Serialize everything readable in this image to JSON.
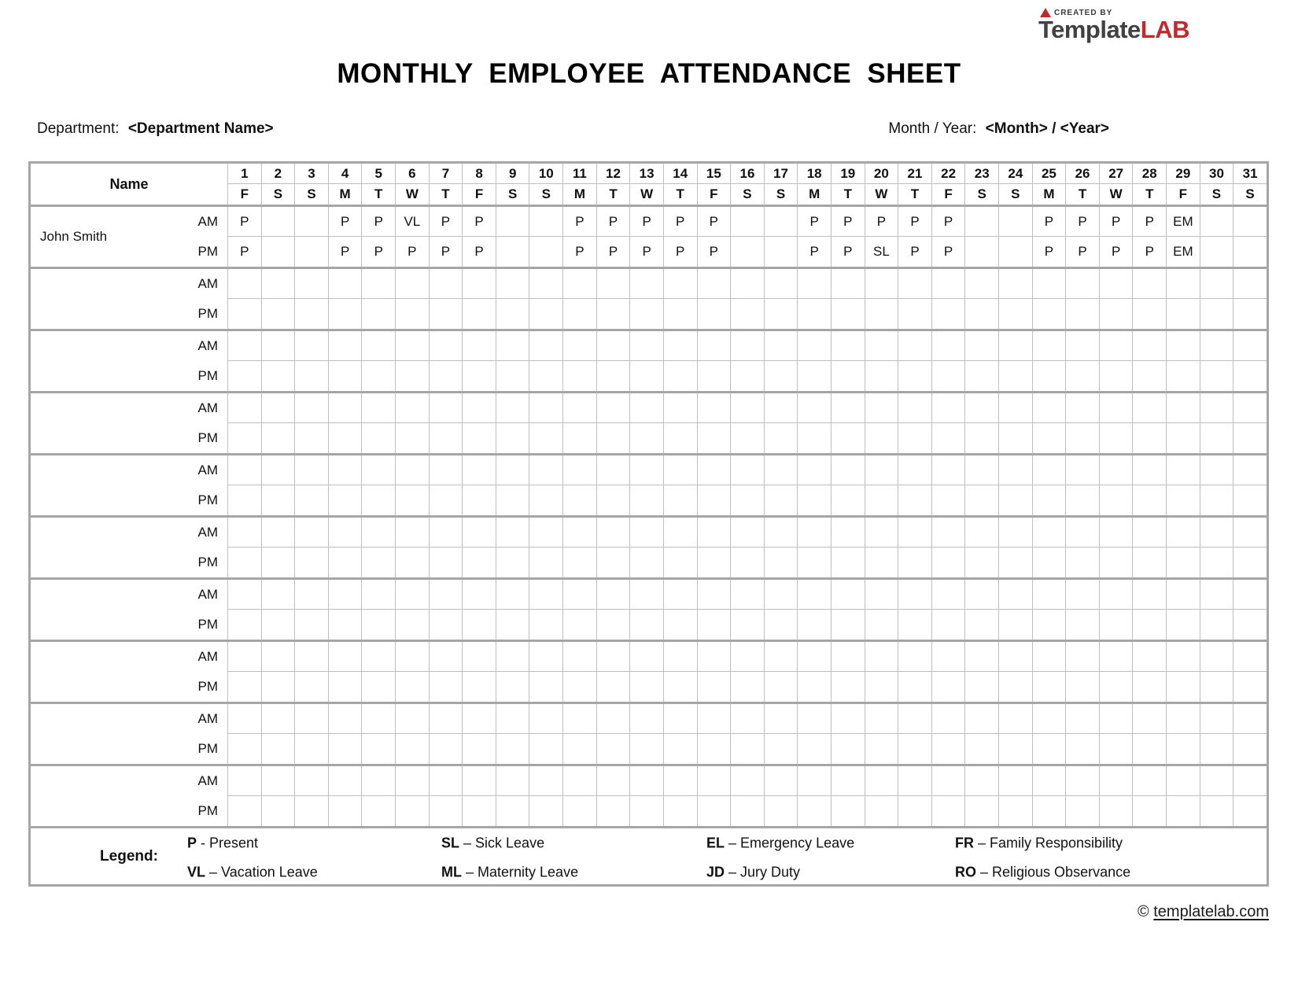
{
  "logo": {
    "created_by": "CREATED BY",
    "name_primary": "Template",
    "name_accent": "LAB",
    "accent_color": "#c2282e",
    "dark_color": "#414042"
  },
  "title": "MONTHLY EMPLOYEE ATTENDANCE SHEET",
  "meta": {
    "department_label": "Department:",
    "department_value": "<Department Name>",
    "month_year_label": "Month / Year:",
    "month_year_value": "<Month> / <Year>"
  },
  "table": {
    "name_header": "Name",
    "am_label": "AM",
    "pm_label": "PM",
    "day_numbers": [
      "1",
      "2",
      "3",
      "4",
      "5",
      "6",
      "7",
      "8",
      "9",
      "10",
      "11",
      "12",
      "13",
      "14",
      "15",
      "16",
      "17",
      "18",
      "19",
      "20",
      "21",
      "22",
      "23",
      "24",
      "25",
      "26",
      "27",
      "28",
      "29",
      "30",
      "31"
    ],
    "day_letters": [
      "F",
      "S",
      "S",
      "M",
      "T",
      "W",
      "T",
      "F",
      "S",
      "S",
      "M",
      "T",
      "W",
      "T",
      "F",
      "S",
      "S",
      "M",
      "T",
      "W",
      "T",
      "F",
      "S",
      "S",
      "M",
      "T",
      "W",
      "T",
      "F",
      "S",
      "S"
    ],
    "employees": [
      {
        "name": "John Smith",
        "am": [
          "P",
          "",
          "",
          "P",
          "P",
          "VL",
          "P",
          "P",
          "",
          "",
          "P",
          "P",
          "P",
          "P",
          "P",
          "",
          "",
          "P",
          "P",
          "P",
          "P",
          "P",
          "",
          "",
          "P",
          "P",
          "P",
          "P",
          "EM",
          "",
          ""
        ],
        "pm": [
          "P",
          "",
          "",
          "P",
          "P",
          "P",
          "P",
          "P",
          "",
          "",
          "P",
          "P",
          "P",
          "P",
          "P",
          "",
          "",
          "P",
          "P",
          "SL",
          "P",
          "P",
          "",
          "",
          "P",
          "P",
          "P",
          "P",
          "EM",
          "",
          ""
        ]
      },
      {
        "name": "",
        "am": [],
        "pm": []
      },
      {
        "name": "",
        "am": [],
        "pm": []
      },
      {
        "name": "",
        "am": [],
        "pm": []
      },
      {
        "name": "",
        "am": [],
        "pm": []
      },
      {
        "name": "",
        "am": [],
        "pm": []
      },
      {
        "name": "",
        "am": [],
        "pm": []
      },
      {
        "name": "",
        "am": [],
        "pm": []
      },
      {
        "name": "",
        "am": [],
        "pm": []
      },
      {
        "name": "",
        "am": [],
        "pm": []
      }
    ]
  },
  "legend": {
    "label": "Legend:",
    "rows": [
      [
        {
          "code": "P",
          "sep": "-",
          "desc": "Present"
        },
        {
          "code": "SL",
          "sep": "–",
          "desc": "Sick Leave"
        },
        {
          "code": "EL",
          "sep": "–",
          "desc": "Emergency Leave"
        },
        {
          "code": "FR",
          "sep": "–",
          "desc": "Family Responsibility"
        }
      ],
      [
        {
          "code": "VL",
          "sep": "–",
          "desc": "Vacation Leave"
        },
        {
          "code": "ML",
          "sep": "–",
          "desc": "Maternity Leave"
        },
        {
          "code": "JD",
          "sep": "–",
          "desc": "Jury Duty"
        },
        {
          "code": "RO",
          "sep": "–",
          "desc": "Religious Observance"
        }
      ]
    ]
  },
  "footer": {
    "copyright_symbol": "©",
    "link_text": "templatelab.com"
  }
}
